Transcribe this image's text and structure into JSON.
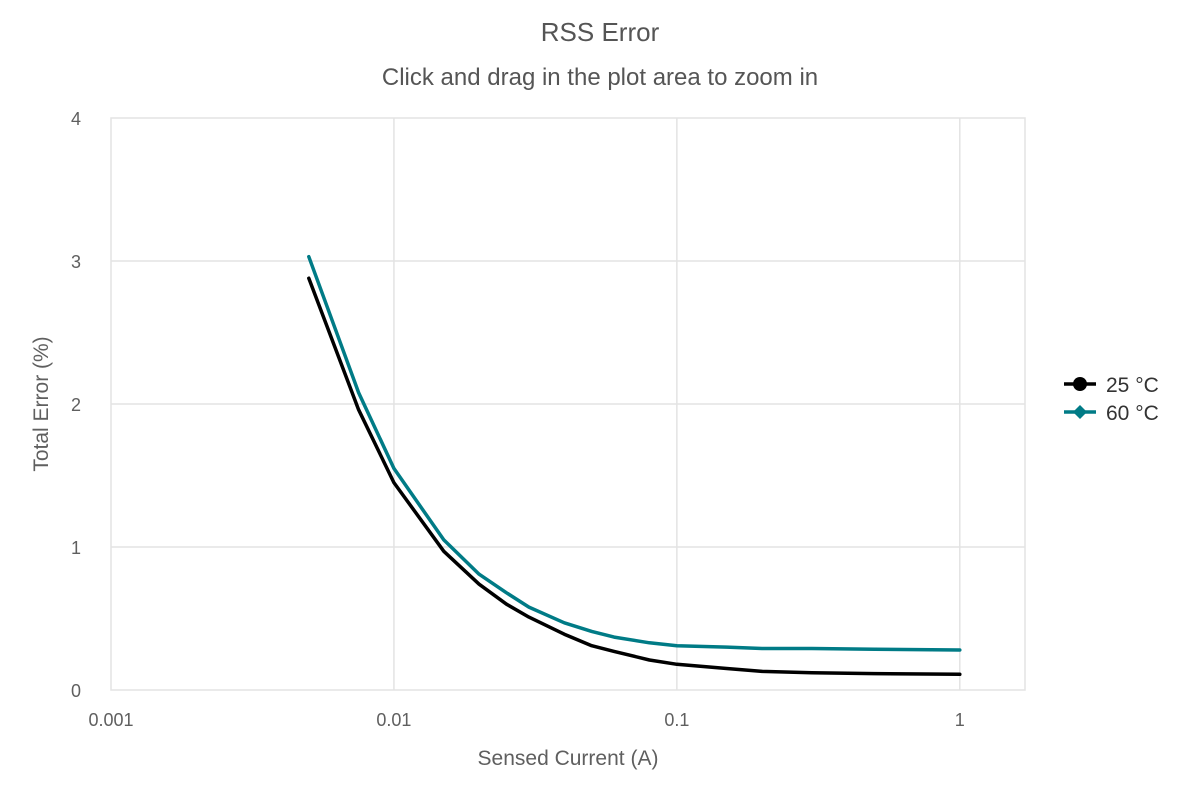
{
  "chart_data": {
    "type": "line",
    "title": "RSS Error",
    "subtitle": "Click and drag in the plot area to zoom in",
    "xlabel": "Sensed Current (A)",
    "ylabel": "Total Error (%)",
    "x_scale": "log",
    "xlim": [
      0.001,
      1.7
    ],
    "ylim": [
      0,
      4
    ],
    "x_ticks": [
      0.001,
      0.01,
      0.1,
      1
    ],
    "x_tick_labels": [
      "0.001",
      "0.01",
      "0.1",
      "1"
    ],
    "y_ticks": [
      0,
      1,
      2,
      3,
      4
    ],
    "y_tick_labels": [
      "0",
      "1",
      "2",
      "3",
      "4"
    ],
    "grid": true,
    "legend_position": "right",
    "series": [
      {
        "name": "25 °C",
        "color": "#000000",
        "marker": "circle",
        "x": [
          0.005,
          0.0075,
          0.01,
          0.015,
          0.02,
          0.025,
          0.03,
          0.04,
          0.05,
          0.06,
          0.08,
          0.1,
          0.15,
          0.2,
          0.3,
          0.5,
          1
        ],
        "y": [
          2.88,
          1.96,
          1.45,
          0.97,
          0.74,
          0.6,
          0.51,
          0.39,
          0.31,
          0.27,
          0.21,
          0.18,
          0.15,
          0.13,
          0.12,
          0.115,
          0.11
        ]
      },
      {
        "name": "60 °C",
        "color": "#007b86",
        "marker": "diamond",
        "x": [
          0.005,
          0.0075,
          0.01,
          0.015,
          0.02,
          0.025,
          0.03,
          0.04,
          0.05,
          0.06,
          0.08,
          0.1,
          0.15,
          0.2,
          0.3,
          0.5,
          1
        ],
        "y": [
          3.03,
          2.08,
          1.55,
          1.05,
          0.81,
          0.68,
          0.58,
          0.47,
          0.41,
          0.37,
          0.33,
          0.31,
          0.3,
          0.29,
          0.29,
          0.285,
          0.28
        ]
      }
    ]
  }
}
